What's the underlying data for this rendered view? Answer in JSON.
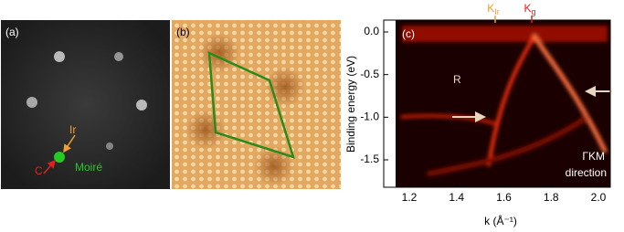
{
  "panels": [
    {
      "label": "(a)",
      "annotations": [
        "Ir",
        "C",
        "Moiré"
      ]
    },
    {
      "label": "(b)"
    },
    {
      "label": "(c)",
      "xlabel": "k (Å⁻¹)",
      "ylabel": "Binding energy (eV)",
      "xticks": [
        1.2,
        1.4,
        1.6,
        1.8,
        {
          "value": 2.0,
          "label": "2.0"
        }
      ],
      "yticks": [
        {
          "value": 0.0,
          "label": "0.0"
        },
        -0.5,
        {
          "value": -1.0,
          "label": "-1.0"
        },
        -1.5
      ],
      "top_labels": [
        {
          "text": "K",
          "sub": "Ir"
        },
        {
          "text": "K",
          "sub": "g"
        }
      ],
      "annotations": [
        "R",
        "ΓKM",
        "direction"
      ]
    }
  ]
}
